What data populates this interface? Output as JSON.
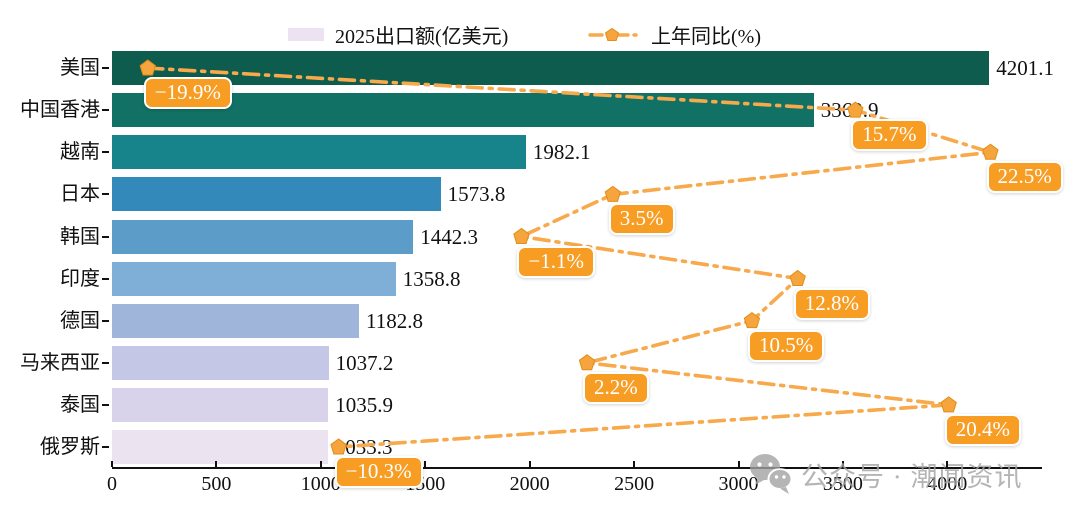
{
  "legend": {
    "bar_label": "2025出口额(亿美元)",
    "line_label": "上年同比(%)"
  },
  "watermark": {
    "text": "公众号 · 潮闻资讯"
  },
  "colors": {
    "line": "#f7a94b",
    "marker_fill": "#f6a43d",
    "marker_edge": "#e08e17",
    "label_box_bg": "#f79d24",
    "label_box_text": "#ffffff",
    "legend_bar_swatch": "#ece2f1",
    "axis": "#111111",
    "watermark": "#a3a3a3",
    "bar_palette": [
      "#0d5c4d",
      "#127165",
      "#17838a",
      "#3389b9",
      "#5b9cc9",
      "#7faed6",
      "#9fb5da",
      "#c4c7e5",
      "#d8d3eb",
      "#ece3f1"
    ]
  },
  "chart_data": {
    "type": "bar",
    "orientation": "horizontal",
    "title": "",
    "categories": [
      "美国",
      "中国香港",
      "越南",
      "日本",
      "韩国",
      "印度",
      "德国",
      "马来西亚",
      "泰国",
      "俄罗斯"
    ],
    "series": [
      {
        "name": "2025出口额(亿美元)",
        "type": "bar",
        "values": [
          4201.1,
          3360.9,
          1982.1,
          1573.8,
          1442.3,
          1358.8,
          1182.8,
          1037.2,
          1035.9,
          1033.3
        ],
        "value_labels": [
          "4201.1",
          "3360.9",
          "1982.1",
          "1573.8",
          "1442.3",
          "1358.8",
          "1182.8",
          "1037.2",
          "1035.9",
          "1033.3"
        ]
      },
      {
        "name": "上年同比(%)",
        "type": "line",
        "values": [
          -19.9,
          15.7,
          22.5,
          3.5,
          -1.1,
          12.8,
          10.5,
          2.2,
          20.4,
          -10.3
        ],
        "point_labels": [
          "−19.9%",
          "15.7%",
          "22.5%",
          "3.5%",
          "−1.1%",
          "12.8%",
          "10.5%",
          "2.2%",
          "20.4%",
          "−10.3%"
        ]
      }
    ],
    "x_axis": {
      "tick_values": [
        0,
        500,
        1000,
        1500,
        2000,
        2500,
        3000,
        3500,
        4000
      ],
      "tick_labels": [
        "0",
        "500",
        "1000",
        "1500",
        "2000",
        "2500",
        "3000",
        "3500",
        "4000"
      ],
      "max": 4450
    },
    "pct_axis": {
      "min": -21.7,
      "max": 26.1,
      "visible": false
    },
    "grid": false,
    "legend_position": "top"
  }
}
